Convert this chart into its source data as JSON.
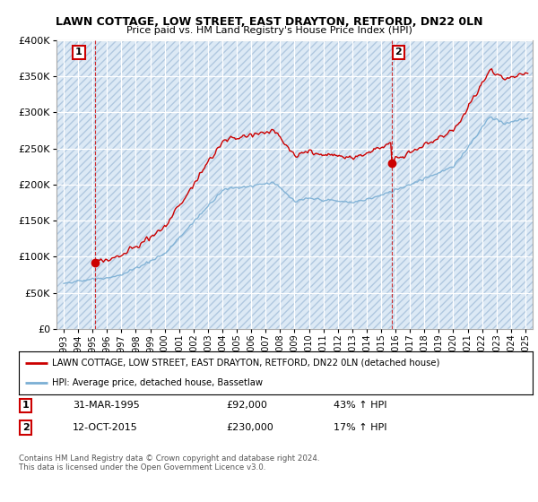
{
  "title": "LAWN COTTAGE, LOW STREET, EAST DRAYTON, RETFORD, DN22 0LN",
  "subtitle": "Price paid vs. HM Land Registry's House Price Index (HPI)",
  "legend_line1": "LAWN COTTAGE, LOW STREET, EAST DRAYTON, RETFORD, DN22 0LN (detached house)",
  "legend_line2": "HPI: Average price, detached house, Bassetlaw",
  "footnote": "Contains HM Land Registry data © Crown copyright and database right 2024.\nThis data is licensed under the Open Government Licence v3.0.",
  "purchase1_date": "31-MAR-1995",
  "purchase1_price": 92000,
  "purchase1_hpi": "43% ↑ HPI",
  "purchase2_date": "12-OCT-2015",
  "purchase2_price": 230000,
  "purchase2_hpi": "17% ↑ HPI",
  "ylim": [
    0,
    400000
  ],
  "yticks": [
    0,
    50000,
    100000,
    150000,
    200000,
    250000,
    300000,
    350000,
    400000
  ],
  "red_line_color": "#cc0000",
  "blue_line_color": "#7bafd4",
  "purchase_marker_color": "#cc0000",
  "box_color": "#cc0000",
  "chart_bg_color": "#dce9f5",
  "hatch_color": "#b0c8e0",
  "grid_color": "#ffffff",
  "background_color": "#ffffff"
}
